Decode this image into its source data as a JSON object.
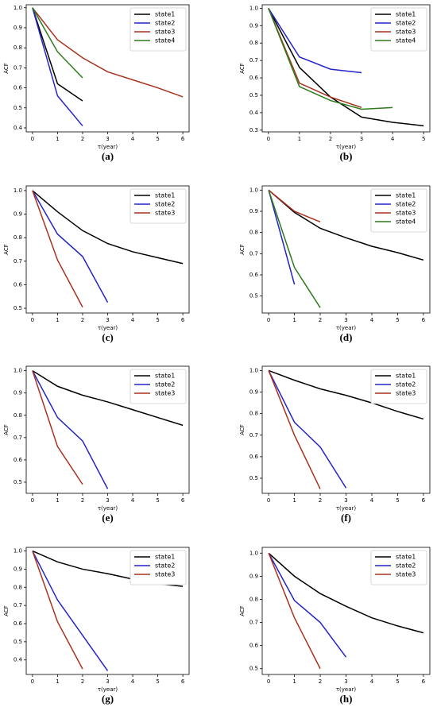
{
  "chart_data": [
    {
      "type": "line",
      "caption": "(a)",
      "xlabel": "τ(year)",
      "ylabel": "ACF",
      "x": [
        0,
        1,
        2,
        3,
        4,
        5,
        6
      ],
      "xlim": [
        -0.25,
        6.25
      ],
      "xticks": [
        0,
        1,
        2,
        3,
        4,
        5,
        6
      ],
      "ylim": [
        0.38,
        1.015
      ],
      "yticks": [
        0.4,
        0.5,
        0.6,
        0.7,
        0.8,
        0.9,
        {
          "value": 1,
          "label": "1.0"
        }
      ],
      "legend": "upper right",
      "series": [
        {
          "name": "state1",
          "color": "#000000",
          "values": [
            1.0,
            0.62,
            0.535,
            null,
            null,
            null,
            null
          ]
        },
        {
          "name": "state2",
          "color": "#2424c8",
          "values": [
            1.0,
            0.56,
            0.41,
            null,
            null,
            null,
            null
          ]
        },
        {
          "name": "state3",
          "color": "#a8321e",
          "values": [
            1.0,
            0.84,
            0.75,
            0.68,
            0.64,
            0.6,
            0.555
          ]
        },
        {
          "name": "state4",
          "color": "#2d7a1a",
          "values": [
            1.0,
            0.78,
            0.65,
            null,
            null,
            null,
            null
          ]
        }
      ]
    },
    {
      "type": "line",
      "caption": "(b)",
      "xlabel": "τ(year)",
      "ylabel": "ACF",
      "x": [
        0,
        1,
        2,
        3,
        4,
        5
      ],
      "xlim": [
        -0.2,
        5.2
      ],
      "xticks": [
        0,
        1,
        2,
        3,
        4,
        5
      ],
      "ylim": [
        0.29,
        1.02
      ],
      "yticks": [
        0.3,
        0.4,
        0.5,
        0.6,
        0.7,
        0.8,
        0.9,
        {
          "value": 1,
          "label": "1.0"
        }
      ],
      "legend": "upper right",
      "series": [
        {
          "name": "state1",
          "color": "#000000",
          "values": [
            1.0,
            0.66,
            0.49,
            0.375,
            0.345,
            0.325
          ]
        },
        {
          "name": "state2",
          "color": "#2424c8",
          "values": [
            1.0,
            0.72,
            0.65,
            0.63,
            null,
            null
          ]
        },
        {
          "name": "state3",
          "color": "#a8321e",
          "values": [
            1.0,
            0.57,
            0.49,
            0.43,
            null,
            null
          ]
        },
        {
          "name": "state4",
          "color": "#2d7a1a",
          "values": [
            1.0,
            0.55,
            0.47,
            0.42,
            0.43,
            null
          ]
        }
      ]
    },
    {
      "type": "line",
      "caption": "(c)",
      "xlabel": "τ(year)",
      "ylabel": "ACF",
      "x": [
        0,
        1,
        2,
        3,
        4,
        5,
        6
      ],
      "xlim": [
        -0.25,
        6.25
      ],
      "xticks": [
        0,
        1,
        2,
        3,
        4,
        5,
        6
      ],
      "ylim": [
        0.48,
        1.02
      ],
      "yticks": [
        0.5,
        0.6,
        0.7,
        0.8,
        0.9,
        {
          "value": 1,
          "label": "1.0"
        }
      ],
      "legend": "upper right",
      "series": [
        {
          "name": "state1",
          "color": "#000000",
          "values": [
            1.0,
            0.91,
            0.83,
            0.775,
            0.74,
            0.715,
            0.69
          ]
        },
        {
          "name": "state2",
          "color": "#2424c8",
          "values": [
            1.0,
            0.815,
            0.72,
            0.525,
            null,
            null,
            null
          ]
        },
        {
          "name": "state3",
          "color": "#a8321e",
          "values": [
            1.0,
            0.705,
            0.505,
            null,
            null,
            null,
            null
          ]
        }
      ]
    },
    {
      "type": "line",
      "caption": "(d)",
      "xlabel": "τ(year)",
      "ylabel": "ACF",
      "x": [
        0,
        1,
        2,
        3,
        4,
        5,
        6
      ],
      "xlim": [
        -0.25,
        6.25
      ],
      "xticks": [
        0,
        1,
        2,
        3,
        4,
        5,
        6
      ],
      "ylim": [
        0.42,
        1.02
      ],
      "yticks": [
        0.5,
        0.6,
        0.7,
        0.8,
        0.9,
        {
          "value": 1,
          "label": "1.0"
        }
      ],
      "legend": "upper right",
      "series": [
        {
          "name": "state1",
          "color": "#000000",
          "values": [
            1.0,
            0.895,
            0.82,
            0.775,
            0.735,
            0.705,
            0.67
          ]
        },
        {
          "name": "state2",
          "color": "#2424c8",
          "values": [
            1.0,
            0.555,
            null,
            null,
            null,
            null,
            null
          ]
        },
        {
          "name": "state3",
          "color": "#a8321e",
          "values": [
            1.0,
            0.9,
            0.85,
            null,
            null,
            null,
            null
          ]
        },
        {
          "name": "state4",
          "color": "#2d7a1a",
          "values": [
            1.0,
            0.635,
            0.445,
            null,
            null,
            null,
            null
          ]
        }
      ]
    },
    {
      "type": "line",
      "caption": "(e)",
      "xlabel": "τ(year)",
      "ylabel": "ACF",
      "x": [
        0,
        1,
        2,
        3,
        4,
        5,
        6
      ],
      "xlim": [
        -0.25,
        6.25
      ],
      "xticks": [
        0,
        1,
        2,
        3,
        4,
        5,
        6
      ],
      "ylim": [
        0.45,
        1.02
      ],
      "yticks": [
        0.5,
        0.6,
        0.7,
        0.8,
        0.9,
        {
          "value": 1,
          "label": "1.0"
        }
      ],
      "legend": "upper right",
      "series": [
        {
          "name": "state1",
          "color": "#000000",
          "values": [
            1.0,
            0.93,
            0.89,
            0.86,
            0.825,
            0.79,
            0.755
          ]
        },
        {
          "name": "state2",
          "color": "#2424c8",
          "values": [
            1.0,
            0.79,
            0.685,
            0.47,
            null,
            null,
            null
          ]
        },
        {
          "name": "state3",
          "color": "#a8321e",
          "values": [
            1.0,
            0.66,
            0.49,
            null,
            null,
            null,
            null
          ]
        }
      ]
    },
    {
      "type": "line",
      "caption": "(f)",
      "xlabel": "τ(year)",
      "ylabel": "ACF",
      "x": [
        0,
        1,
        2,
        3,
        4,
        5,
        6
      ],
      "xlim": [
        -0.25,
        6.25
      ],
      "xticks": [
        0,
        1,
        2,
        3,
        4,
        5,
        6
      ],
      "ylim": [
        0.43,
        1.02
      ],
      "yticks": [
        0.5,
        0.6,
        0.7,
        0.8,
        0.9,
        {
          "value": 1,
          "label": "1.0"
        }
      ],
      "legend": "upper right",
      "series": [
        {
          "name": "state1",
          "color": "#000000",
          "values": [
            1.0,
            0.955,
            0.915,
            0.885,
            0.85,
            0.81,
            0.775
          ]
        },
        {
          "name": "state2",
          "color": "#2424c8",
          "values": [
            1.0,
            0.76,
            0.645,
            0.455,
            null,
            null,
            null
          ]
        },
        {
          "name": "state3",
          "color": "#a8321e",
          "values": [
            1.0,
            0.7,
            0.45,
            null,
            null,
            null,
            null
          ]
        }
      ]
    },
    {
      "type": "line",
      "caption": "(g)",
      "xlabel": "τ(year)",
      "ylabel": "ACF",
      "x": [
        0,
        1,
        2,
        3,
        4,
        5,
        6
      ],
      "xlim": [
        -0.25,
        6.25
      ],
      "xticks": [
        0,
        1,
        2,
        3,
        4,
        5,
        6
      ],
      "ylim": [
        0.32,
        1.02
      ],
      "yticks": [
        0.4,
        0.5,
        0.6,
        0.7,
        0.8,
        0.9,
        {
          "value": 1,
          "label": "1.0"
        }
      ],
      "legend": "upper right",
      "series": [
        {
          "name": "state1",
          "color": "#000000",
          "values": [
            1.0,
            0.94,
            0.9,
            0.875,
            0.845,
            0.82,
            0.805
          ]
        },
        {
          "name": "state2",
          "color": "#2424c8",
          "values": [
            1.0,
            0.73,
            0.535,
            0.34,
            null,
            null,
            null
          ]
        },
        {
          "name": "state3",
          "color": "#a8321e",
          "values": [
            1.0,
            0.61,
            0.35,
            null,
            null,
            null,
            null
          ]
        }
      ]
    },
    {
      "type": "line",
      "caption": "(h)",
      "xlabel": "τ(year)",
      "ylabel": "ACF",
      "x": [
        0,
        1,
        2,
        3,
        4,
        5,
        6
      ],
      "xlim": [
        -0.25,
        6.25
      ],
      "xticks": [
        0,
        1,
        2,
        3,
        4,
        5,
        6
      ],
      "ylim": [
        0.475,
        1.025
      ],
      "yticks": [
        0.5,
        0.6,
        0.7,
        0.8,
        0.9,
        {
          "value": 1,
          "label": "1.0"
        }
      ],
      "legend": "upper right",
      "series": [
        {
          "name": "state1",
          "color": "#000000",
          "values": [
            1.0,
            0.9,
            0.825,
            0.77,
            0.72,
            0.685,
            0.655
          ]
        },
        {
          "name": "state2",
          "color": "#2424c8",
          "values": [
            1.0,
            0.795,
            0.7,
            0.55,
            null,
            null,
            null
          ]
        },
        {
          "name": "state3",
          "color": "#a8321e",
          "values": [
            1.0,
            0.72,
            0.5,
            null,
            null,
            null,
            null
          ]
        }
      ]
    }
  ]
}
